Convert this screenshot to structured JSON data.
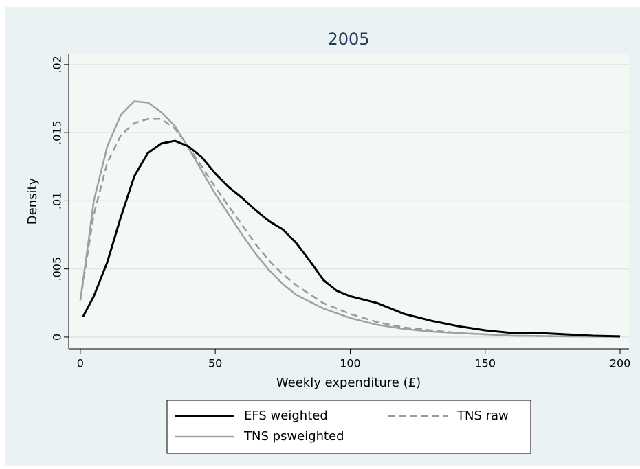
{
  "chart_data": {
    "type": "line",
    "title": "2005",
    "x_label": "Weekly expenditure (£)",
    "y_label": "Density",
    "xlim": [
      -4.3,
      203.3
    ],
    "ylim": [
      -0.00086,
      0.0208
    ],
    "xticks": [
      0,
      50,
      100,
      150,
      200
    ],
    "yticks": [
      0,
      {
        "value": 0.005,
        "label": ".005"
      },
      {
        "value": 0.01,
        "label": ".01"
      },
      {
        "value": 0.015,
        "label": ".015"
      },
      {
        "value": 0.02,
        "label": ".02"
      }
    ],
    "grid": true,
    "legend_position": "bottom",
    "legend_columns": 2,
    "series": [
      {
        "name": "EFS weighted",
        "color": "#000000",
        "style": "solid",
        "x": [
          1,
          5,
          10,
          15,
          20,
          25,
          30,
          35,
          40,
          45,
          50,
          55,
          60,
          65,
          70,
          75,
          80,
          85,
          90,
          95,
          100,
          110,
          120,
          130,
          140,
          150,
          160,
          170,
          180,
          190,
          200
        ],
        "values": [
          0.0015,
          0.003,
          0.0055,
          0.0088,
          0.0118,
          0.0135,
          0.0142,
          0.0144,
          0.014,
          0.0132,
          0.012,
          0.011,
          0.0102,
          0.0093,
          0.0085,
          0.0079,
          0.0069,
          0.0056,
          0.0042,
          0.0034,
          0.003,
          0.0025,
          0.0017,
          0.0012,
          0.0008,
          0.0005,
          0.0003,
          0.0003,
          0.0002,
          0.0001,
          5e-05
        ]
      },
      {
        "name": "TNS raw",
        "color": "#999999",
        "style": "dashed",
        "x": [
          0,
          3,
          5,
          10,
          15,
          20,
          25,
          30,
          35,
          40,
          45,
          50,
          55,
          60,
          65,
          70,
          75,
          80,
          90,
          100,
          110,
          120,
          130,
          140,
          150,
          160,
          180,
          200
        ],
        "values": [
          0.0027,
          0.0065,
          0.009,
          0.0128,
          0.0148,
          0.0157,
          0.016,
          0.016,
          0.0153,
          0.014,
          0.0125,
          0.011,
          0.0096,
          0.0082,
          0.0068,
          0.0056,
          0.0046,
          0.0038,
          0.0025,
          0.0017,
          0.0011,
          0.0007,
          0.0005,
          0.0003,
          0.0002,
          0.0001,
          5e-05,
          2e-05
        ]
      },
      {
        "name": "TNS psweighted",
        "color": "#a0a0a0",
        "style": "solid",
        "x": [
          0,
          3,
          5,
          10,
          15,
          20,
          25,
          30,
          35,
          40,
          45,
          50,
          55,
          60,
          65,
          70,
          75,
          80,
          90,
          100,
          110,
          120,
          130,
          140,
          150,
          160,
          180,
          200
        ],
        "values": [
          0.0027,
          0.007,
          0.01,
          0.014,
          0.0163,
          0.0173,
          0.0172,
          0.0165,
          0.0155,
          0.0139,
          0.0122,
          0.0105,
          0.009,
          0.0075,
          0.0061,
          0.0049,
          0.0039,
          0.0031,
          0.0021,
          0.0014,
          0.0009,
          0.0006,
          0.0004,
          0.0003,
          0.0002,
          0.0001,
          5e-05,
          2e-05
        ]
      }
    ]
  }
}
